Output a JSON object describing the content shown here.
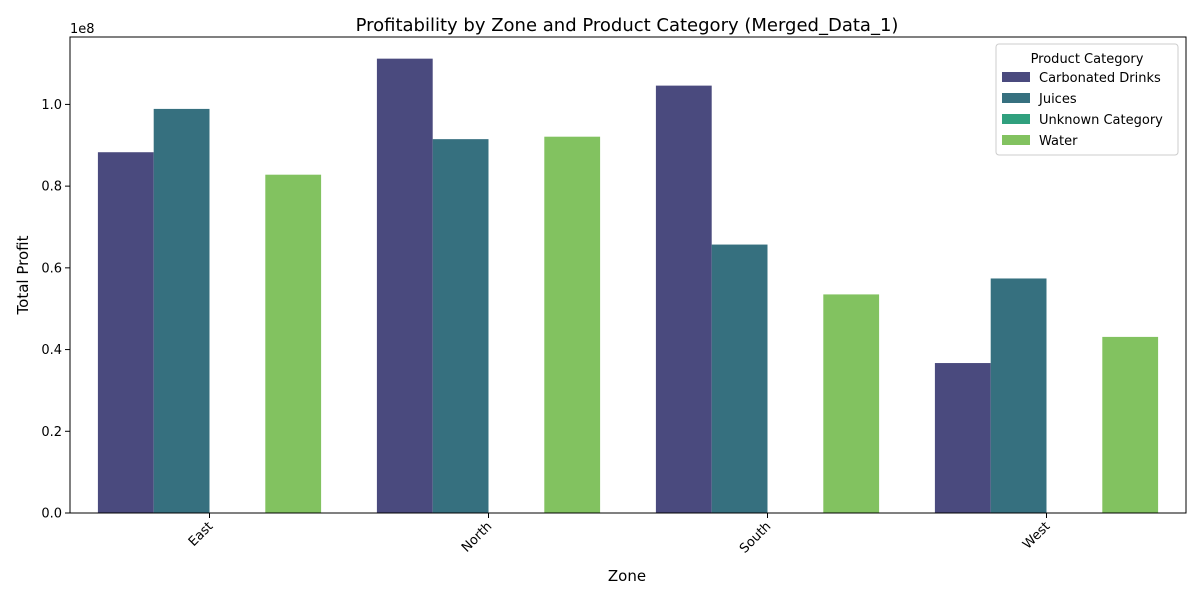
{
  "chart_data": {
    "type": "bar",
    "title": "Profitability by Zone and Product Category (Merged_Data_1)",
    "xlabel": "Zone",
    "ylabel": "Total Profit",
    "y_offset_label": "1e8",
    "categories": [
      "East",
      "North",
      "South",
      "West"
    ],
    "ylim": [
      0,
      1.165
    ],
    "y_ticks": [
      0.0,
      0.2,
      0.4,
      0.6,
      0.8,
      1.0
    ],
    "y_tick_labels": [
      "0.0",
      "0.2",
      "0.4",
      "0.6",
      "0.8",
      "1.0"
    ],
    "legend": {
      "title": "Product Category",
      "position": "top-right"
    },
    "series": [
      {
        "name": "Carbonated Drinks",
        "color": "#4a4a7e",
        "values": [
          0.883,
          1.112,
          1.046,
          0.367
        ]
      },
      {
        "name": "Juices",
        "color": "#36707f",
        "values": [
          0.989,
          0.915,
          0.657,
          0.574
        ]
      },
      {
        "name": "Unknown Category",
        "color": "#30a07e",
        "values": [
          0,
          0,
          0,
          0
        ]
      },
      {
        "name": "Water",
        "color": "#82c260",
        "values": [
          0.828,
          0.921,
          0.535,
          0.431
        ]
      }
    ]
  }
}
